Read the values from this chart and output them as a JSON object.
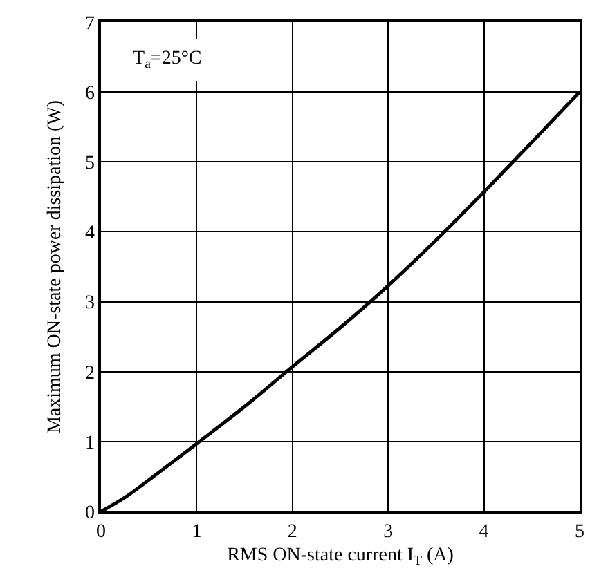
{
  "chart_data": {
    "type": "line",
    "xlabel": "RMS ON-state current I$_{T}$ (A)",
    "ylabel": "Maximum ON-state power dissipation (W)",
    "annotations": [
      "T$_{a}$=25°C"
    ],
    "x": [
      0,
      0.25,
      0.5,
      1,
      1.5,
      2,
      2.5,
      3,
      3.5,
      4,
      4.5,
      5
    ],
    "series": [
      {
        "color": "#000000",
        "values": [
          0,
          0.2,
          0.45,
          0.97,
          1.5,
          2.07,
          2.63,
          3.23,
          3.88,
          4.57,
          5.28,
          6
        ]
      }
    ],
    "xlim": [
      0,
      5
    ],
    "ylim": [
      0,
      7
    ],
    "xticks": [
      0,
      1,
      2,
      3,
      4,
      5
    ],
    "yticks": [
      0,
      1,
      2,
      3,
      4,
      5,
      6,
      7
    ],
    "grid": true,
    "marker": "none",
    "line_style": "solid"
  }
}
